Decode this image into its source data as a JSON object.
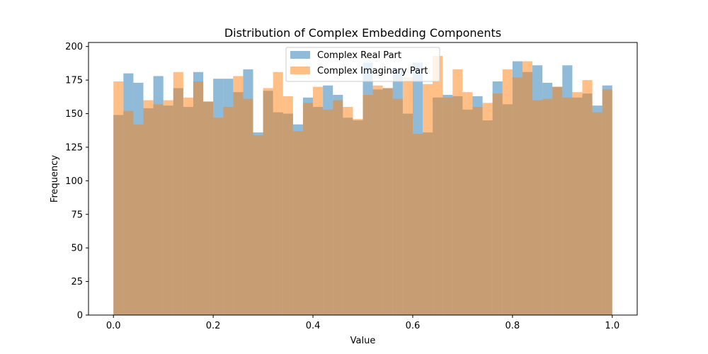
{
  "chart_data": {
    "type": "histogram",
    "title": "Distribution of Complex Embedding Components",
    "xlabel": "Value",
    "ylabel": "Frequency",
    "xlim": [
      -0.05,
      1.05
    ],
    "ylim": [
      0,
      203
    ],
    "bins": 50,
    "bin_range": [
      0.0,
      1.0
    ],
    "xticks": [
      "0.0",
      "0.2",
      "0.4",
      "0.6",
      "0.8",
      "1.0"
    ],
    "yticks": [
      "0",
      "25",
      "50",
      "75",
      "100",
      "125",
      "150",
      "175",
      "200"
    ],
    "legend_position": "upper center",
    "overlap_color": "#c49c72",
    "series": [
      {
        "name": "Complex Real Part",
        "color": "#1f77b4",
        "alpha": 0.5,
        "values": [
          149,
          180,
          173,
          154,
          178,
          156,
          169,
          155,
          181,
          159,
          176,
          176,
          166,
          183,
          136,
          167,
          151,
          150,
          142,
          162,
          155,
          171,
          164,
          147,
          145,
          188,
          168,
          169,
          183,
          150,
          188,
          136,
          162,
          164,
          163,
          153,
          163,
          145,
          174,
          157,
          189,
          181,
          186,
          173,
          170,
          186,
          162,
          165,
          156,
          171
        ]
      },
      {
        "name": "Complex Imaginary Part",
        "color": "#ff7f0e",
        "alpha": 0.5,
        "values": [
          174,
          152,
          142,
          160,
          157,
          160,
          181,
          162,
          174,
          159,
          147,
          155,
          178,
          161,
          134,
          169,
          181,
          163,
          137,
          158,
          170,
          153,
          160,
          155,
          146,
          164,
          171,
          169,
          161,
          177,
          135,
          172,
          193,
          162,
          183,
          166,
          155,
          158,
          165,
          183,
          177,
          189,
          160,
          161,
          170,
          162,
          166,
          175,
          151,
          168
        ]
      }
    ]
  }
}
